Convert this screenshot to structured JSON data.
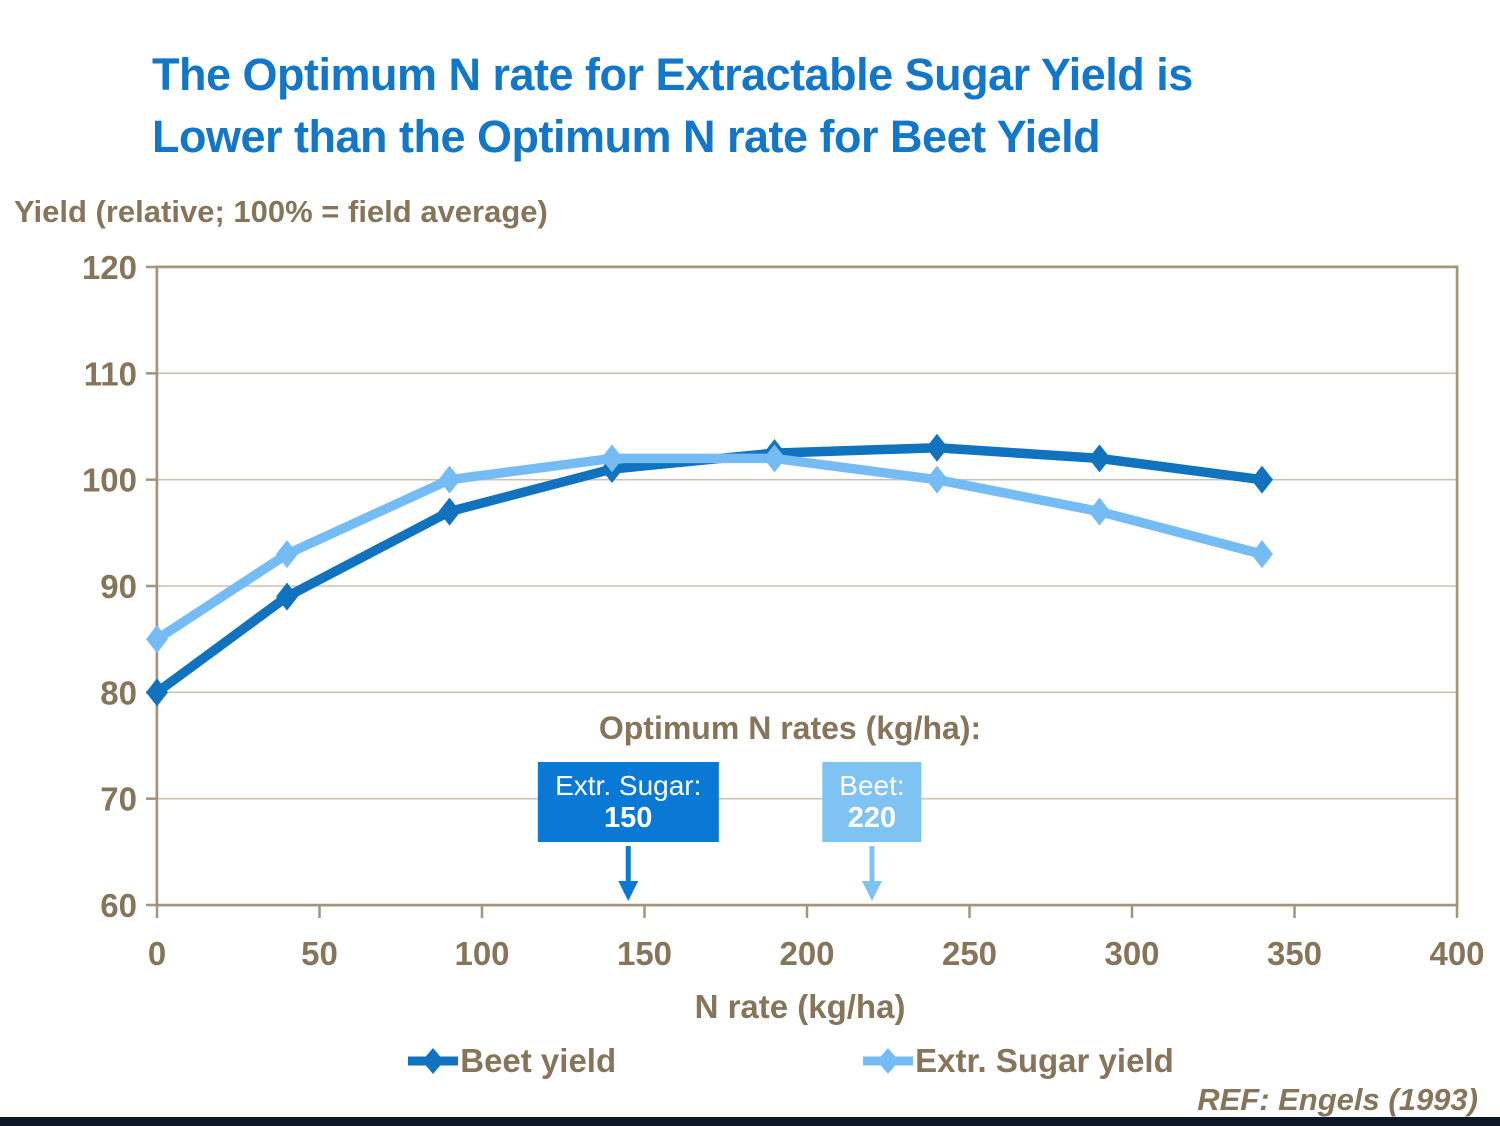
{
  "title": {
    "line1": "The Optimum N rate for Extractable Sugar Yield is",
    "line2": "Lower than the Optimum N rate for Beet Yield"
  },
  "footer": {
    "ref": "REF: Engels (1993)"
  },
  "colors": {
    "title_blue": "#1277c8",
    "text_brown": "#86755a",
    "axis": "#a2947d",
    "gridline": "#cdc2b1",
    "beet_series": "#1172bd",
    "sugar_series": "#74bcf3",
    "beet_box": "#0a79d6",
    "sugar_box": "#7fc3f2",
    "footer_bar": "#0b1626"
  },
  "chart_data": {
    "type": "line",
    "x": [
      0,
      40,
      90,
      140,
      190,
      240,
      290,
      340
    ],
    "series": [
      {
        "name": "Beet yield",
        "color": "#1172bd",
        "values": [
          80,
          89,
          97,
          101,
          102.5,
          103,
          102,
          100
        ]
      },
      {
        "name": "Extr. Sugar yield",
        "color": "#74bcf3",
        "values": [
          85,
          93,
          100,
          102,
          102,
          100,
          97,
          93
        ]
      }
    ],
    "title": "",
    "xlabel": "N rate (kg/ha)",
    "ylabel": "Yield (relative; 100% = field average)",
    "xlim": [
      0,
      400
    ],
    "ylim": [
      60,
      120
    ],
    "x_ticks": [
      0,
      50,
      100,
      150,
      200,
      250,
      300,
      350,
      400
    ],
    "y_ticks": [
      60,
      70,
      80,
      90,
      100,
      110,
      120
    ],
    "grid": true,
    "legend_position": "bottom",
    "annotations": {
      "heading": "Optimum N rates (kg/ha):",
      "boxes": [
        {
          "label": "Extr. Sugar:",
          "value": "150",
          "x": 145,
          "color": "#0a79d6"
        },
        {
          "label": "Beet:",
          "value": "220",
          "x": 220,
          "color": "#7fc3f2"
        }
      ]
    }
  }
}
